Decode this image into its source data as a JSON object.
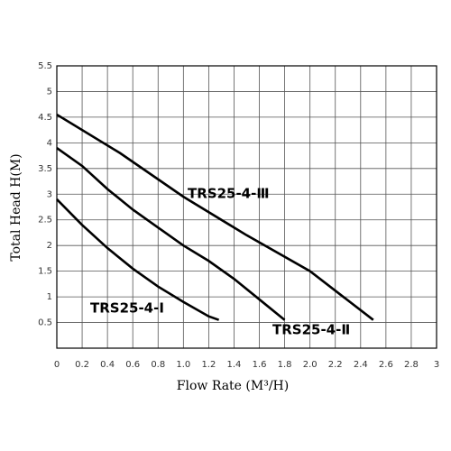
{
  "chart_data": {
    "type": "line",
    "x_label": "Flow Rate (M³/H)",
    "y_label": "Total Head H(M)",
    "xlim": [
      0,
      3
    ],
    "ylim": [
      0,
      5.5
    ],
    "xticks": [
      0,
      0.2,
      0.4,
      0.6,
      0.8,
      {
        "value": 1,
        "label": "1.0"
      },
      1.2,
      1.4,
      1.6,
      1.8,
      {
        "value": 2,
        "label": "2.0"
      },
      2.2,
      2.4,
      2.6,
      2.8,
      3
    ],
    "yticks": [
      0.5,
      1,
      1.5,
      2,
      2.5,
      3,
      3.5,
      4,
      4.5,
      5,
      5.5
    ],
    "grid": true,
    "series": [
      {
        "name": "TRS25-4-Ⅲ",
        "color": "#000000",
        "x": [
          0,
          0.5,
          1.0,
          1.5,
          2.0,
          2.5
        ],
        "values": [
          4.55,
          3.8,
          2.95,
          2.2,
          1.5,
          0.55
        ]
      },
      {
        "name": "TRS25-4-Ⅱ",
        "color": "#000000",
        "x": [
          0,
          0.2,
          0.4,
          0.6,
          0.8,
          1.0,
          1.2,
          1.4,
          1.6,
          1.8
        ],
        "values": [
          3.9,
          3.55,
          3.1,
          2.7,
          2.35,
          2.0,
          1.7,
          1.35,
          0.95,
          0.55
        ]
      },
      {
        "name": "TRS25-4-Ⅰ",
        "color": "#000000",
        "x": [
          0,
          0.2,
          0.4,
          0.6,
          0.8,
          1.0,
          1.2,
          1.28
        ],
        "values": [
          2.9,
          2.4,
          1.95,
          1.55,
          1.2,
          0.9,
          0.62,
          0.55
        ]
      }
    ]
  }
}
